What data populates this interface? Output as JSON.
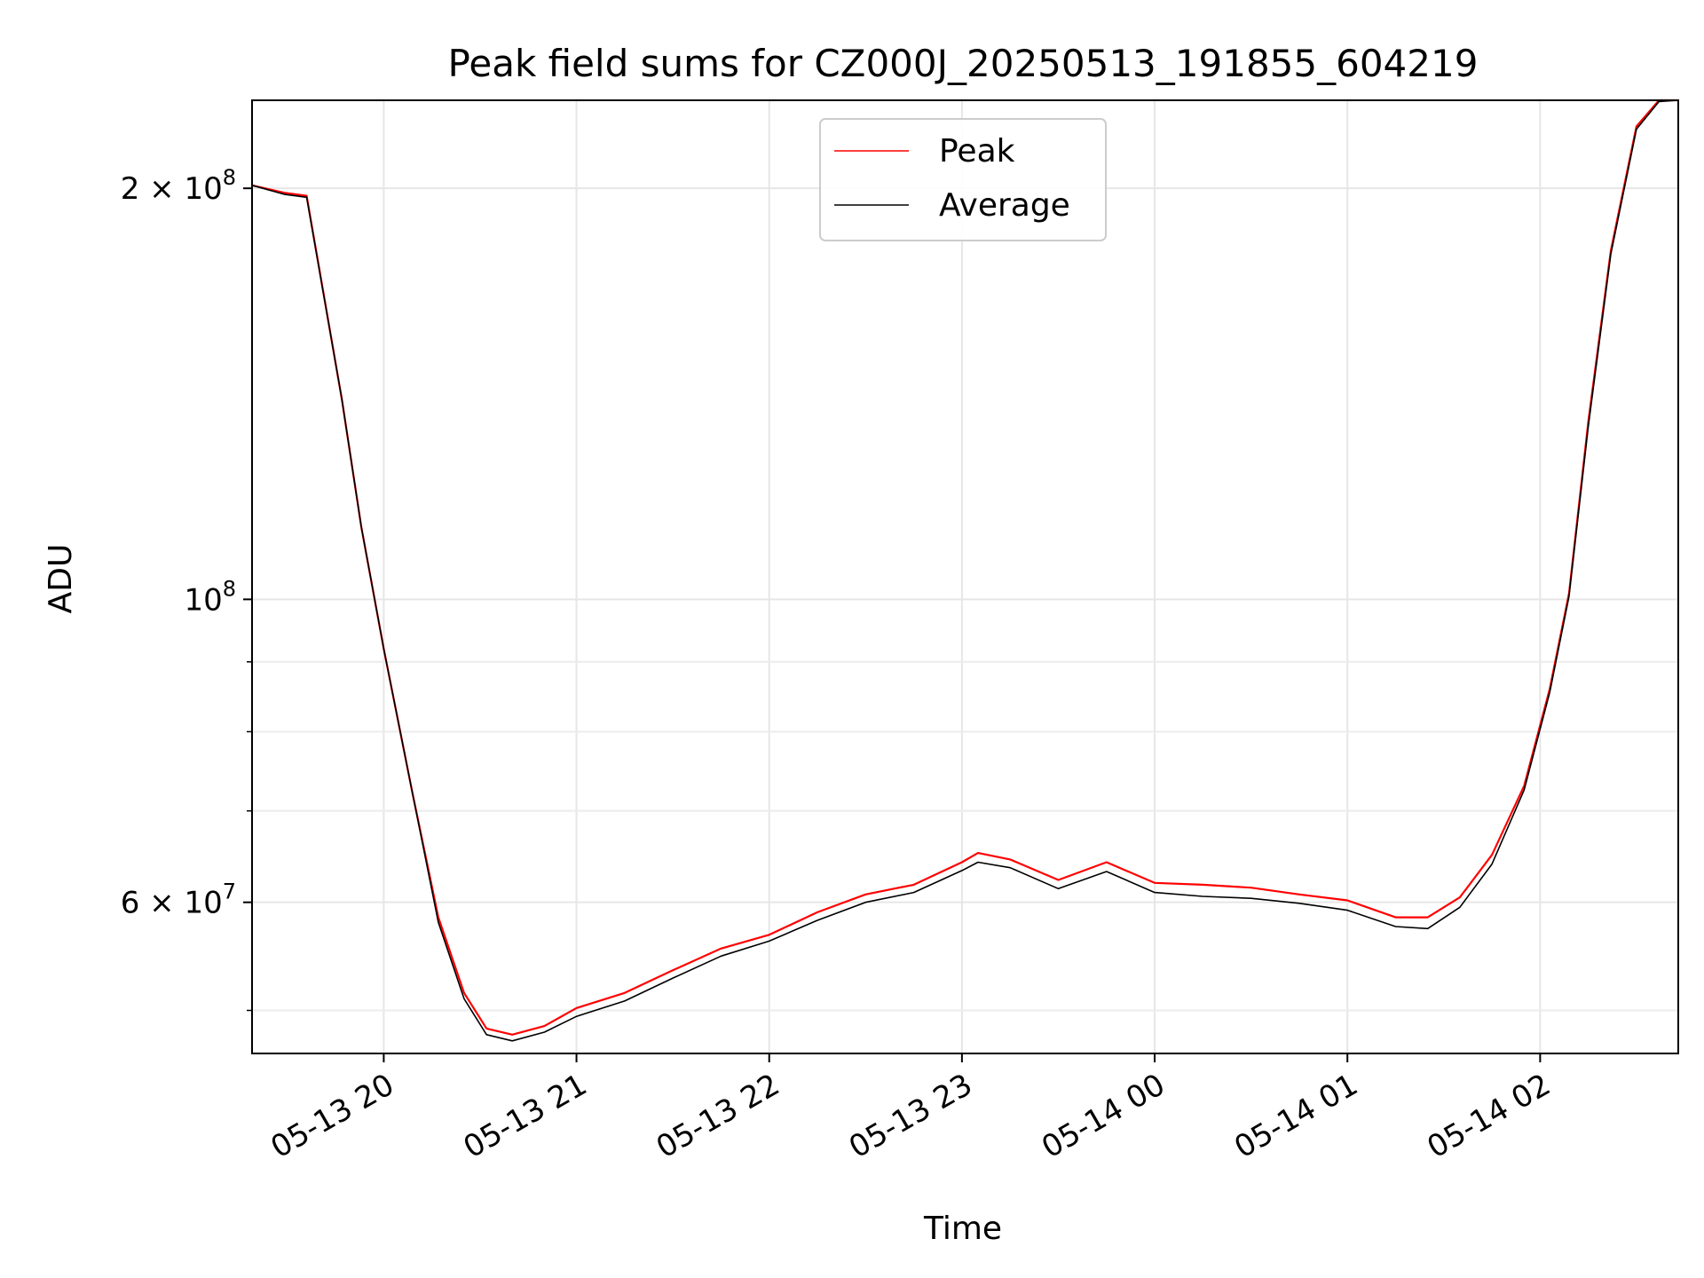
{
  "chart_data": {
    "type": "line",
    "title": "Peak field sums for CZ000J_20250513_191855_604219",
    "xlabel": "Time",
    "ylabel": "ADU",
    "yscale": "log",
    "grid": true,
    "legend_position": "top-center",
    "xlim": [
      "2025-05-13 19:19",
      "2025-05-14 02:43"
    ],
    "ylim": [
      46500000,
      232000000
    ],
    "x_ticks": [
      {
        "value": "2025-05-13 20:00",
        "label": "05-13 20"
      },
      {
        "value": "2025-05-13 21:00",
        "label": "05-13 21"
      },
      {
        "value": "2025-05-13 22:00",
        "label": "05-13 22"
      },
      {
        "value": "2025-05-13 23:00",
        "label": "05-13 23"
      },
      {
        "value": "2025-05-14 00:00",
        "label": "05-14 00"
      },
      {
        "value": "2025-05-14 01:00",
        "label": "05-14 01"
      },
      {
        "value": "2025-05-14 02:00",
        "label": "05-14 02"
      }
    ],
    "y_major_ticks": [
      {
        "value": 100000000,
        "base": "10",
        "exp": "8"
      },
      {
        "value": 60000000,
        "base": "6 × 10",
        "exp": "7"
      },
      {
        "value": 200000000,
        "base": "2 × 10",
        "exp": "8"
      }
    ],
    "y_minor_ticks": [
      50000000,
      70000000,
      80000000,
      90000000
    ],
    "x": [
      "2025-05-13 19:19",
      "2025-05-13 19:29",
      "2025-05-13 19:36",
      "2025-05-13 19:47",
      "2025-05-13 19:53",
      "2025-05-13 20:00",
      "2025-05-13 20:09",
      "2025-05-13 20:17",
      "2025-05-13 20:25",
      "2025-05-13 20:32",
      "2025-05-13 20:40",
      "2025-05-13 20:50",
      "2025-05-13 21:00",
      "2025-05-13 21:15",
      "2025-05-13 21:30",
      "2025-05-13 21:45",
      "2025-05-13 22:00",
      "2025-05-13 22:15",
      "2025-05-13 22:30",
      "2025-05-13 22:45",
      "2025-05-13 23:00",
      "2025-05-13 23:05",
      "2025-05-13 23:15",
      "2025-05-13 23:30",
      "2025-05-13 23:45",
      "2025-05-14 00:00",
      "2025-05-14 00:15",
      "2025-05-14 00:30",
      "2025-05-14 00:45",
      "2025-05-14 01:00",
      "2025-05-14 01:15",
      "2025-05-14 01:25",
      "2025-05-14 01:35",
      "2025-05-14 01:45",
      "2025-05-14 01:55",
      "2025-05-14 02:03",
      "2025-05-14 02:09",
      "2025-05-14 02:15",
      "2025-05-14 02:22",
      "2025-05-14 02:30",
      "2025-05-14 02:37",
      "2025-05-14 02:43"
    ],
    "series": [
      {
        "name": "Peak",
        "color": "#ff0000",
        "values": [
          201000000,
          198500000,
          197500000,
          140000000,
          113000000,
          92000000,
          72000000,
          58500000,
          51500000,
          48500000,
          48000000,
          48700000,
          50200000,
          51500000,
          53500000,
          55500000,
          56800000,
          59000000,
          60800000,
          61800000,
          64200000,
          65200000,
          64500000,
          62300000,
          64200000,
          62000000,
          61800000,
          61500000,
          60800000,
          60200000,
          58500000,
          58500000,
          60500000,
          65000000,
          73000000,
          86000000,
          101000000,
          135000000,
          180000000,
          222000000,
          232000000,
          232000000
        ]
      },
      {
        "name": "Average",
        "color": "#000000",
        "values": [
          201000000,
          198000000,
          197000000,
          140000000,
          113000000,
          92000000,
          72000000,
          58000000,
          51000000,
          48000000,
          47500000,
          48200000,
          49500000,
          50800000,
          52800000,
          54800000,
          56200000,
          58200000,
          60000000,
          61000000,
          63300000,
          64200000,
          63600000,
          61400000,
          63200000,
          61000000,
          60600000,
          60400000,
          59900000,
          59200000,
          57600000,
          57400000,
          59500000,
          64000000,
          72500000,
          85500000,
          100500000,
          134000000,
          179000000,
          221000000,
          231500000,
          232000000
        ]
      }
    ]
  }
}
